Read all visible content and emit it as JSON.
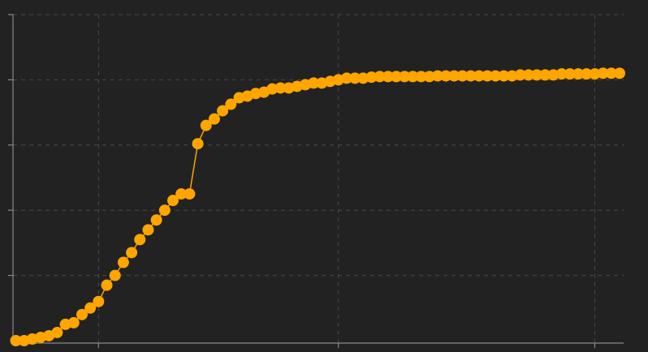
{
  "chart_data": {
    "type": "line",
    "title": "",
    "xlabel": "",
    "ylabel": "",
    "grid": true,
    "legend": "none",
    "xlim": [
      0,
      74
    ],
    "ylim": [
      0,
      1
    ],
    "x_grid": [
      10,
      39,
      70
    ],
    "y_grid": [
      0.2,
      0.4,
      0.6,
      0.8,
      1.0
    ],
    "series": [
      {
        "color": "#ffa500",
        "x": [
          0,
          1,
          2,
          3,
          4,
          5,
          6,
          7,
          8,
          9,
          10,
          11,
          12,
          13,
          14,
          15,
          16,
          17,
          18,
          19,
          20,
          21,
          22,
          23,
          24,
          25,
          26,
          27,
          28,
          29,
          30,
          31,
          32,
          33,
          34,
          35,
          36,
          37,
          38,
          39,
          40,
          41,
          42,
          43,
          44,
          45,
          46,
          47,
          48,
          49,
          50,
          51,
          52,
          53,
          54,
          55,
          56,
          57,
          58,
          59,
          60,
          61,
          62,
          63,
          64,
          65,
          66,
          67,
          68,
          69,
          70,
          71,
          72,
          73
        ],
        "y": [
          0.0,
          0.0,
          0.005,
          0.01,
          0.015,
          0.025,
          0.05,
          0.055,
          0.08,
          0.1,
          0.12,
          0.17,
          0.2,
          0.24,
          0.27,
          0.31,
          0.34,
          0.37,
          0.4,
          0.43,
          0.45,
          0.45,
          0.604,
          0.66,
          0.68,
          0.705,
          0.725,
          0.745,
          0.75,
          0.758,
          0.762,
          0.772,
          0.775,
          0.775,
          0.78,
          0.785,
          0.79,
          0.79,
          0.795,
          0.8,
          0.805,
          0.805,
          0.805,
          0.808,
          0.81,
          0.81,
          0.81,
          0.81,
          0.81,
          0.81,
          0.81,
          0.812,
          0.812,
          0.812,
          0.812,
          0.812,
          0.812,
          0.812,
          0.812,
          0.812,
          0.812,
          0.815,
          0.815,
          0.815,
          0.815,
          0.815,
          0.818,
          0.818,
          0.818,
          0.818,
          0.818,
          0.82,
          0.82,
          0.82
        ]
      }
    ]
  }
}
